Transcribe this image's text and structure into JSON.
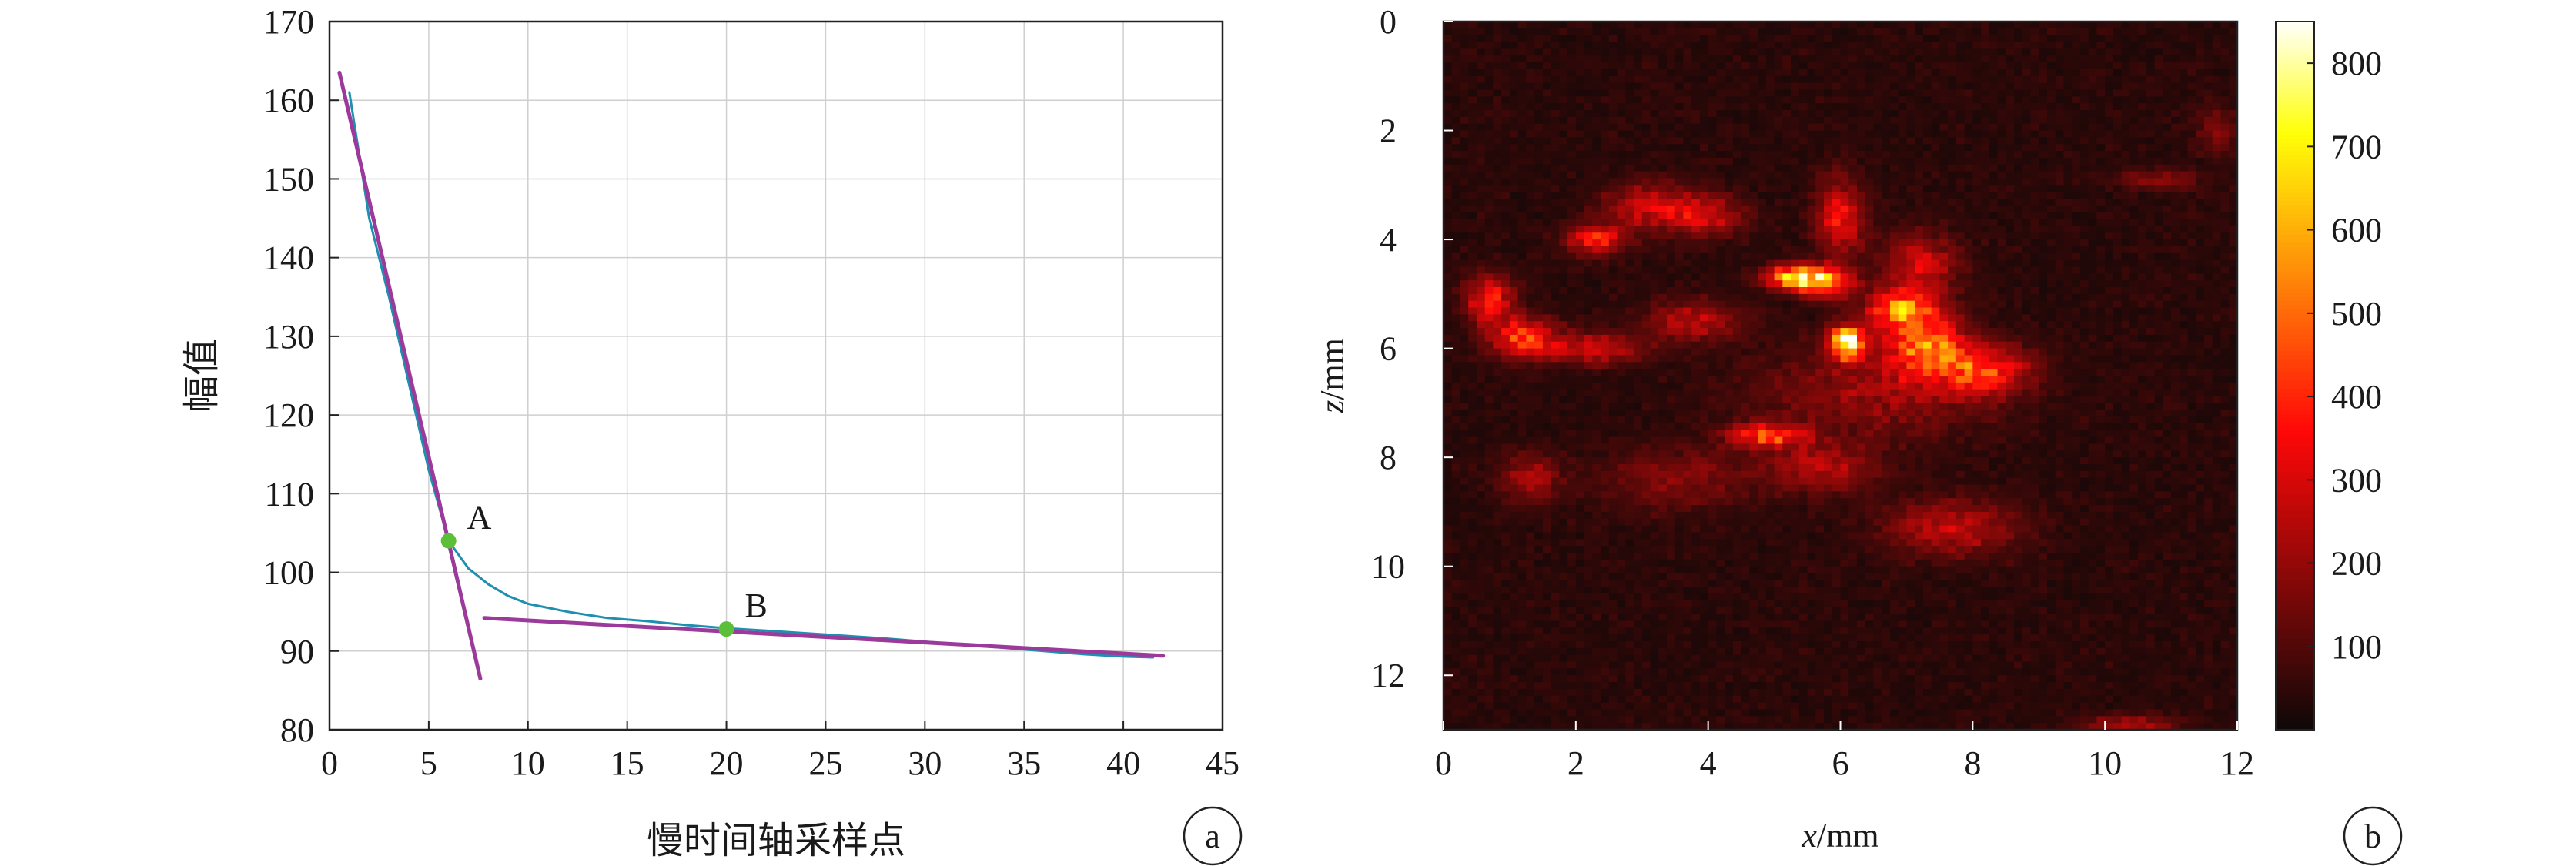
{
  "chart_data": [
    {
      "type": "line",
      "panel_label": "a",
      "xlabel": "慢时间轴采样点",
      "ylabel": "幅值",
      "xlim": [
        0,
        45
      ],
      "ylim": [
        80,
        170
      ],
      "xticks": [
        0,
        5,
        10,
        15,
        20,
        25,
        30,
        35,
        40,
        45
      ],
      "yticks": [
        80,
        90,
        100,
        110,
        120,
        130,
        140,
        150,
        160,
        170
      ],
      "grid": true,
      "series": [
        {
          "color": "#1f8fb0",
          "x": [
            1,
            2,
            3,
            4,
            5,
            6,
            7,
            8,
            9,
            10,
            12,
            14,
            16,
            18,
            20,
            22,
            25,
            28,
            30,
            32,
            35,
            38,
            40,
            41.5
          ],
          "y": [
            161,
            145,
            135,
            124,
            113,
            104,
            100.5,
            98.5,
            97,
            96,
            95,
            94.2,
            93.8,
            93.3,
            92.9,
            92.6,
            92.1,
            91.6,
            91.2,
            90.8,
            90.2,
            89.6,
            89.3,
            89.2
          ]
        },
        {
          "color": "#9b3a9b",
          "x": [
            0.5,
            7.6
          ],
          "y": [
            163.5,
            86.5
          ]
        },
        {
          "color": "#9b3a9b",
          "x": [
            7.8,
            42
          ],
          "y": [
            94.2,
            89.4
          ]
        }
      ],
      "points": [
        {
          "label": "A",
          "x": 6,
          "y": 104,
          "color": "#5cbf3a"
        },
        {
          "label": "B",
          "x": 20,
          "y": 92.8,
          "color": "#5cbf3a"
        }
      ]
    },
    {
      "type": "heatmap",
      "panel_label": "b",
      "xlabel_var": "x",
      "xlabel_unit": "/mm",
      "ylabel_var": "z",
      "ylabel_unit": "/mm",
      "xlim": [
        0,
        12
      ],
      "ylim": [
        0,
        13
      ],
      "xticks": [
        0,
        2,
        4,
        6,
        8,
        10,
        12
      ],
      "yticks": [
        0,
        2,
        4,
        6,
        8,
        10,
        12
      ],
      "colormap": "hot",
      "colorbar_ticks": [
        100,
        200,
        300,
        400,
        500,
        600,
        700,
        800
      ],
      "colorbar_range": [
        0,
        850
      ],
      "background_level": 40,
      "blobs": [
        {
          "x": 6.1,
          "z": 5.9,
          "amp": 800,
          "sx": 0.18,
          "sz": 0.2
        },
        {
          "x": 5.3,
          "z": 4.7,
          "amp": 600,
          "sx": 0.3,
          "sz": 0.15
        },
        {
          "x": 5.8,
          "z": 4.8,
          "amp": 520,
          "sx": 0.25,
          "sz": 0.18
        },
        {
          "x": 7.3,
          "z": 5.95,
          "amp": 460,
          "sx": 0.4,
          "sz": 0.4
        },
        {
          "x": 6.9,
          "z": 5.3,
          "amp": 430,
          "sx": 0.35,
          "sz": 0.25
        },
        {
          "x": 8.2,
          "z": 6.4,
          "amp": 360,
          "sx": 0.45,
          "sz": 0.3
        },
        {
          "x": 1.2,
          "z": 5.8,
          "amp": 380,
          "sx": 0.35,
          "sz": 0.25
        },
        {
          "x": 0.7,
          "z": 5.1,
          "amp": 340,
          "sx": 0.25,
          "sz": 0.3
        },
        {
          "x": 2.3,
          "z": 6.0,
          "amp": 250,
          "sx": 0.5,
          "sz": 0.2
        },
        {
          "x": 3.8,
          "z": 5.5,
          "amp": 220,
          "sx": 0.5,
          "sz": 0.25
        },
        {
          "x": 2.3,
          "z": 4.0,
          "amp": 330,
          "sx": 0.3,
          "sz": 0.2
        },
        {
          "x": 3.2,
          "z": 3.4,
          "amp": 260,
          "sx": 0.5,
          "sz": 0.3
        },
        {
          "x": 4.0,
          "z": 3.6,
          "amp": 200,
          "sx": 0.4,
          "sz": 0.25
        },
        {
          "x": 6.0,
          "z": 3.6,
          "amp": 280,
          "sx": 0.25,
          "sz": 0.5
        },
        {
          "x": 7.2,
          "z": 4.5,
          "amp": 250,
          "sx": 0.4,
          "sz": 0.4
        },
        {
          "x": 4.9,
          "z": 7.6,
          "amp": 380,
          "sx": 0.4,
          "sz": 0.15
        },
        {
          "x": 5.7,
          "z": 8.2,
          "amp": 200,
          "sx": 0.6,
          "sz": 0.3
        },
        {
          "x": 1.3,
          "z": 8.4,
          "amp": 190,
          "sx": 0.3,
          "sz": 0.3
        },
        {
          "x": 7.7,
          "z": 9.3,
          "amp": 220,
          "sx": 0.7,
          "sz": 0.35
        },
        {
          "x": 3.5,
          "z": 8.4,
          "amp": 130,
          "sx": 0.8,
          "sz": 0.4
        },
        {
          "x": 10.8,
          "z": 2.9,
          "amp": 160,
          "sx": 0.4,
          "sz": 0.12
        },
        {
          "x": 11.7,
          "z": 2.0,
          "amp": 150,
          "sx": 0.2,
          "sz": 0.3
        },
        {
          "x": 10.4,
          "z": 12.9,
          "amp": 190,
          "sx": 0.5,
          "sz": 0.12
        },
        {
          "x": 6.5,
          "z": 6.8,
          "amp": 160,
          "sx": 1.2,
          "sz": 0.6
        }
      ]
    }
  ]
}
